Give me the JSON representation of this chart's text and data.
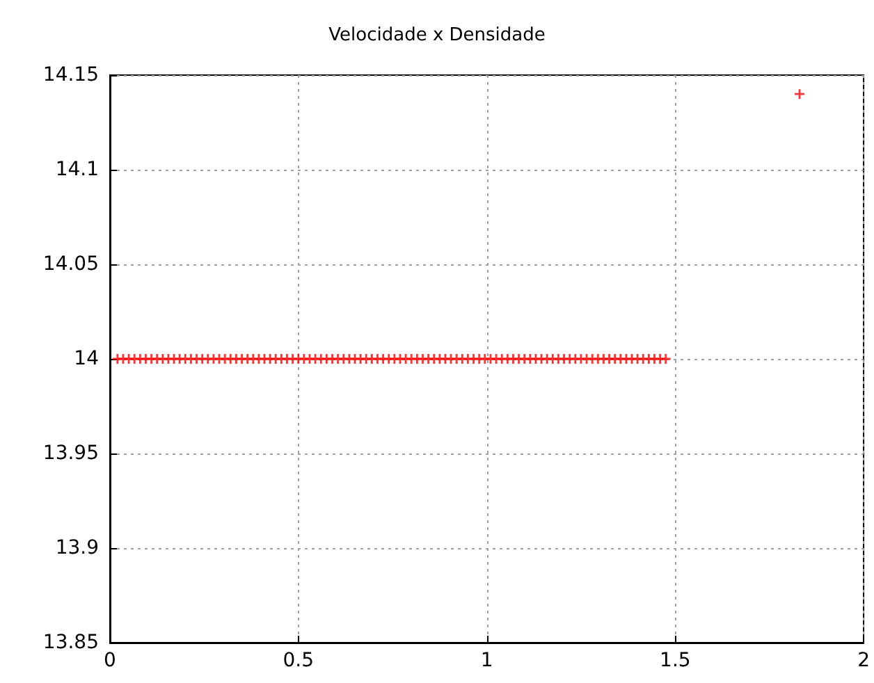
{
  "chart_data": {
    "type": "scatter",
    "title": "Velocidade x Densidade",
    "x": [
      0.02,
      0.035,
      0.05,
      0.065,
      0.08,
      0.095,
      0.11,
      0.125,
      0.14,
      0.155,
      0.17,
      0.185,
      0.2,
      0.215,
      0.23,
      0.245,
      0.26,
      0.275,
      0.29,
      0.305,
      0.32,
      0.335,
      0.35,
      0.365,
      0.38,
      0.395,
      0.41,
      0.425,
      0.44,
      0.455,
      0.47,
      0.485,
      0.5,
      0.515,
      0.53,
      0.545,
      0.56,
      0.575,
      0.59,
      0.605,
      0.62,
      0.635,
      0.65,
      0.665,
      0.68,
      0.695,
      0.71,
      0.725,
      0.74,
      0.755,
      0.77,
      0.785,
      0.8,
      0.815,
      0.83,
      0.845,
      0.86,
      0.875,
      0.89,
      0.905,
      0.92,
      0.935,
      0.95,
      0.965,
      0.98,
      0.995,
      1.01,
      1.025,
      1.04,
      1.055,
      1.07,
      1.085,
      1.1,
      1.115,
      1.13,
      1.145,
      1.16,
      1.175,
      1.19,
      1.205,
      1.22,
      1.235,
      1.25,
      1.265,
      1.28,
      1.295,
      1.31,
      1.325,
      1.34,
      1.355,
      1.37,
      1.385,
      1.4,
      1.415,
      1.43,
      1.445,
      1.46,
      1.475,
      1.83
    ],
    "series": [
      {
        "color": "#ff0000",
        "values": [
          14,
          14,
          14,
          14,
          14,
          14,
          14,
          14,
          14,
          14,
          14,
          14,
          14,
          14,
          14,
          14,
          14,
          14,
          14,
          14,
          14,
          14,
          14,
          14,
          14,
          14,
          14,
          14,
          14,
          14,
          14,
          14,
          14,
          14,
          14,
          14,
          14,
          14,
          14,
          14,
          14,
          14,
          14,
          14,
          14,
          14,
          14,
          14,
          14,
          14,
          14,
          14,
          14,
          14,
          14,
          14,
          14,
          14,
          14,
          14,
          14,
          14,
          14,
          14,
          14,
          14,
          14,
          14,
          14,
          14,
          14,
          14,
          14,
          14,
          14,
          14,
          14,
          14,
          14,
          14,
          14,
          14,
          14,
          14,
          14,
          14,
          14,
          14,
          14,
          14,
          14,
          14,
          14,
          14,
          14,
          14,
          14,
          14,
          14.14
        ]
      }
    ],
    "xlim": [
      0,
      2
    ],
    "xticks": [
      0,
      0.5,
      1,
      1.5,
      2
    ],
    "ylim": [
      13.85,
      14.15
    ],
    "yticks": [
      13.85,
      13.9,
      13.95,
      14,
      14.05,
      14.1,
      14.15
    ],
    "grid": true,
    "marker": "cross"
  }
}
